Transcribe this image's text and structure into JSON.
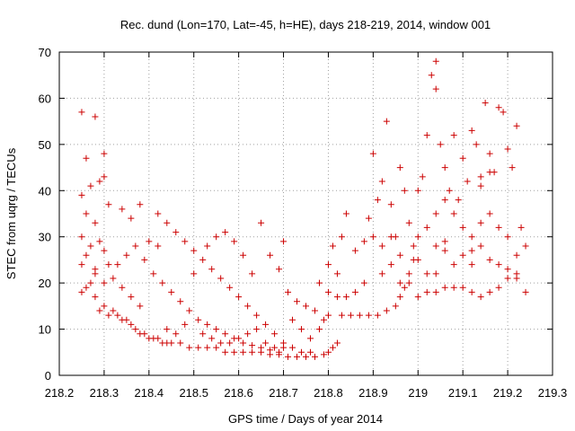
{
  "chart_data": {
    "type": "scatter",
    "title": "Rec. dund (Lon=170, Lat=-45, h=HE), days 218-219, 2014, window 001",
    "xlabel": "GPS time / Days of year 2014",
    "ylabel": "STEC from uqrg / TECUs",
    "xlim": [
      218.2,
      219.3
    ],
    "ylim": [
      0,
      70
    ],
    "xticks": [
      218.2,
      218.3,
      218.4,
      218.5,
      218.6,
      218.7,
      218.8,
      218.9,
      219.0,
      219.1,
      219.2,
      219.3
    ],
    "xtick_labels": [
      "218.2",
      "218.3",
      "218.4",
      "218.5",
      "218.6",
      "218.7",
      "218.8",
      "218.9",
      "219",
      "219.1",
      "219.2",
      "219.3"
    ],
    "yticks": [
      0,
      10,
      20,
      30,
      40,
      50,
      60,
      70
    ],
    "ytick_labels": [
      "0",
      "10",
      "20",
      "30",
      "40",
      "50",
      "60",
      "70"
    ],
    "grid": true,
    "marker": "plus",
    "color": "#cc0000",
    "points": [
      [
        218.25,
        57
      ],
      [
        218.28,
        56
      ],
      [
        218.26,
        47
      ],
      [
        218.3,
        48
      ],
      [
        218.29,
        42
      ],
      [
        218.25,
        39
      ],
      [
        218.3,
        43
      ],
      [
        218.27,
        41
      ],
      [
        218.31,
        37
      ],
      [
        218.26,
        35
      ],
      [
        218.28,
        33
      ],
      [
        218.25,
        30
      ],
      [
        218.29,
        29
      ],
      [
        218.27,
        28
      ],
      [
        218.3,
        27
      ],
      [
        218.26,
        26
      ],
      [
        218.25,
        24
      ],
      [
        218.31,
        24
      ],
      [
        218.28,
        23
      ],
      [
        218.27,
        20
      ],
      [
        218.26,
        19
      ],
      [
        218.25,
        18
      ],
      [
        218.28,
        17
      ],
      [
        218.3,
        15
      ],
      [
        218.29,
        14
      ],
      [
        218.32,
        14
      ],
      [
        218.31,
        13
      ],
      [
        218.33,
        13
      ],
      [
        218.34,
        12
      ],
      [
        218.35,
        12
      ],
      [
        218.36,
        11
      ],
      [
        218.37,
        10
      ],
      [
        218.38,
        9
      ],
      [
        218.39,
        9
      ],
      [
        218.4,
        8
      ],
      [
        218.41,
        8
      ],
      [
        218.42,
        8
      ],
      [
        218.43,
        7
      ],
      [
        218.44,
        7
      ],
      [
        218.45,
        7
      ],
      [
        218.47,
        7
      ],
      [
        218.49,
        6
      ],
      [
        218.51,
        6
      ],
      [
        218.53,
        6
      ],
      [
        218.55,
        6
      ],
      [
        218.57,
        5
      ],
      [
        218.59,
        5
      ],
      [
        218.61,
        5
      ],
      [
        218.63,
        5
      ],
      [
        218.65,
        5
      ],
      [
        218.67,
        4.5
      ],
      [
        218.69,
        4.5
      ],
      [
        218.71,
        4
      ],
      [
        218.73,
        4
      ],
      [
        218.75,
        4
      ],
      [
        218.77,
        4
      ],
      [
        218.79,
        4.5
      ],
      [
        218.8,
        5
      ],
      [
        218.81,
        6
      ],
      [
        218.82,
        7
      ],
      [
        218.8,
        13
      ],
      [
        218.83,
        13
      ],
      [
        218.85,
        13
      ],
      [
        218.87,
        13
      ],
      [
        218.89,
        13
      ],
      [
        218.91,
        13
      ],
      [
        218.93,
        14
      ],
      [
        218.95,
        15
      ],
      [
        218.96,
        17
      ],
      [
        218.97,
        19
      ],
      [
        218.98,
        22
      ],
      [
        218.99,
        25
      ],
      [
        219.0,
        17
      ],
      [
        219.02,
        18
      ],
      [
        219.04,
        18
      ],
      [
        219.06,
        19
      ],
      [
        219.08,
        19
      ],
      [
        219.1,
        19
      ],
      [
        219.12,
        18
      ],
      [
        219.14,
        17
      ],
      [
        219.16,
        18
      ],
      [
        219.18,
        19
      ],
      [
        219.2,
        21
      ],
      [
        219.22,
        21
      ],
      [
        219.24,
        18
      ],
      [
        218.33,
        24
      ],
      [
        218.35,
        26
      ],
      [
        218.37,
        28
      ],
      [
        218.39,
        25
      ],
      [
        218.41,
        22
      ],
      [
        218.43,
        20
      ],
      [
        218.45,
        18
      ],
      [
        218.47,
        16
      ],
      [
        218.49,
        14
      ],
      [
        218.51,
        12
      ],
      [
        218.53,
        11
      ],
      [
        218.55,
        10
      ],
      [
        218.57,
        9
      ],
      [
        218.59,
        8
      ],
      [
        218.61,
        7
      ],
      [
        218.63,
        6.5
      ],
      [
        218.65,
        6
      ],
      [
        218.67,
        5.5
      ],
      [
        218.69,
        5
      ],
      [
        218.34,
        36
      ],
      [
        218.36,
        34
      ],
      [
        218.38,
        37
      ],
      [
        218.42,
        35
      ],
      [
        218.44,
        33
      ],
      [
        218.46,
        31
      ],
      [
        218.48,
        29
      ],
      [
        218.5,
        27
      ],
      [
        218.52,
        25
      ],
      [
        218.54,
        23
      ],
      [
        218.56,
        21
      ],
      [
        218.58,
        19
      ],
      [
        218.6,
        17
      ],
      [
        218.62,
        15
      ],
      [
        218.64,
        13
      ],
      [
        218.66,
        11
      ],
      [
        218.68,
        9
      ],
      [
        218.7,
        7
      ],
      [
        218.72,
        6
      ],
      [
        218.74,
        5
      ],
      [
        218.76,
        5
      ],
      [
        218.4,
        29
      ],
      [
        218.42,
        28
      ],
      [
        218.5,
        22
      ],
      [
        218.53,
        28
      ],
      [
        218.55,
        30
      ],
      [
        218.57,
        31
      ],
      [
        218.59,
        29
      ],
      [
        218.61,
        26
      ],
      [
        218.63,
        22
      ],
      [
        218.65,
        33
      ],
      [
        218.67,
        26
      ],
      [
        218.69,
        23
      ],
      [
        218.7,
        29
      ],
      [
        218.71,
        18
      ],
      [
        218.73,
        16
      ],
      [
        218.75,
        15
      ],
      [
        218.77,
        14
      ],
      [
        218.79,
        12
      ],
      [
        218.78,
        20
      ],
      [
        218.8,
        24
      ],
      [
        218.81,
        28
      ],
      [
        218.82,
        22
      ],
      [
        218.83,
        30
      ],
      [
        218.84,
        35
      ],
      [
        218.86,
        27
      ],
      [
        218.88,
        29
      ],
      [
        218.89,
        34
      ],
      [
        218.9,
        48
      ],
      [
        218.91,
        38
      ],
      [
        218.92,
        42
      ],
      [
        218.93,
        55
      ],
      [
        218.94,
        37
      ],
      [
        218.95,
        30
      ],
      [
        218.96,
        45
      ],
      [
        218.97,
        40
      ],
      [
        218.98,
        33
      ],
      [
        218.99,
        28
      ],
      [
        219.0,
        40
      ],
      [
        219.01,
        43
      ],
      [
        219.02,
        52
      ],
      [
        219.03,
        65
      ],
      [
        219.04,
        62
      ],
      [
        219.04,
        68
      ],
      [
        219.05,
        50
      ],
      [
        219.06,
        45
      ],
      [
        219.07,
        40
      ],
      [
        219.08,
        52
      ],
      [
        219.09,
        38
      ],
      [
        219.1,
        47
      ],
      [
        219.11,
        42
      ],
      [
        219.12,
        53
      ],
      [
        219.13,
        50
      ],
      [
        219.14,
        43
      ],
      [
        219.15,
        59
      ],
      [
        219.16,
        48
      ],
      [
        219.17,
        44
      ],
      [
        219.18,
        58
      ],
      [
        219.19,
        57
      ],
      [
        219.2,
        49
      ],
      [
        219.21,
        45
      ],
      [
        219.22,
        54
      ],
      [
        219.23,
        32
      ],
      [
        219.24,
        28
      ],
      [
        219.0,
        30
      ],
      [
        219.02,
        32
      ],
      [
        219.04,
        35
      ],
      [
        219.06,
        38
      ],
      [
        219.08,
        35
      ],
      [
        219.1,
        32
      ],
      [
        219.12,
        30
      ],
      [
        219.14,
        33
      ],
      [
        219.16,
        35
      ],
      [
        219.18,
        32
      ],
      [
        219.2,
        30
      ],
      [
        219.22,
        26
      ],
      [
        219.0,
        25
      ],
      [
        219.02,
        22
      ],
      [
        219.04,
        28
      ],
      [
        219.06,
        27
      ],
      [
        219.08,
        24
      ],
      [
        219.1,
        26
      ],
      [
        219.12,
        24
      ],
      [
        219.14,
        28
      ],
      [
        219.16,
        25
      ],
      [
        219.18,
        24
      ],
      [
        219.2,
        23
      ],
      [
        219.22,
        22
      ],
      [
        218.9,
        30
      ],
      [
        218.92,
        28
      ],
      [
        218.94,
        30
      ],
      [
        218.96,
        26
      ],
      [
        218.98,
        20
      ],
      [
        218.88,
        20
      ],
      [
        218.86,
        18
      ],
      [
        218.84,
        17
      ],
      [
        218.82,
        17
      ],
      [
        218.8,
        18
      ],
      [
        218.78,
        10
      ],
      [
        218.76,
        8
      ],
      [
        218.74,
        10
      ],
      [
        218.72,
        12
      ],
      [
        218.92,
        22
      ],
      [
        218.94,
        24
      ],
      [
        218.96,
        20
      ],
      [
        219.14,
        41
      ],
      [
        219.16,
        44
      ],
      [
        219.12,
        27
      ],
      [
        219.06,
        29
      ],
      [
        219.04,
        22
      ],
      [
        218.36,
        17
      ],
      [
        218.38,
        15
      ],
      [
        218.34,
        19
      ],
      [
        218.32,
        21
      ],
      [
        218.3,
        20
      ],
      [
        218.28,
        22
      ],
      [
        218.46,
        9
      ],
      [
        218.44,
        10
      ],
      [
        218.48,
        11
      ],
      [
        218.52,
        9
      ],
      [
        218.54,
        8
      ],
      [
        218.56,
        7
      ],
      [
        218.58,
        7
      ],
      [
        218.6,
        8
      ],
      [
        218.62,
        9
      ],
      [
        218.64,
        10
      ],
      [
        218.66,
        7
      ],
      [
        218.68,
        6
      ],
      [
        218.7,
        6
      ]
    ]
  }
}
